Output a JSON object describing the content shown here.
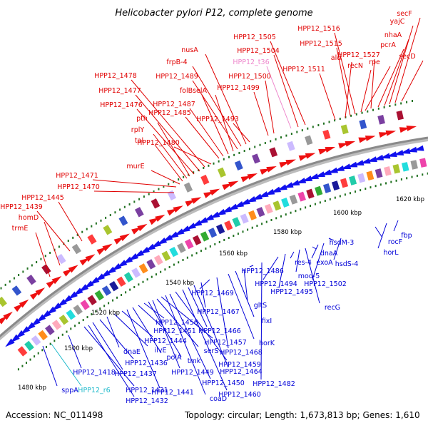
{
  "title": "Helicobacter pylori P12, complete genome",
  "accession": "Accession: NC_011498",
  "summary": "Topology: circular; Length: 1,673,813 bp; Genes: 1,610",
  "colors": {
    "forward_label": "#e00000",
    "reverse_label": "#0000d8",
    "rna_forward_label": "#ee88cc",
    "rna_reverse_label": "#22bbcc",
    "backbone": "#888888",
    "tick": "#207020"
  },
  "kbp_markers": [
    "1480 kbp",
    "1500 kbp",
    "1520 kbp",
    "1540 kbp",
    "1560 kbp",
    "1580 kbp",
    "1600 kbp",
    "1620 kbp"
  ],
  "forward_labels": [
    {
      "text": "trmE",
      "cls": "f"
    },
    {
      "text": "homD",
      "cls": "f"
    },
    {
      "text": "HPP12_1439",
      "cls": "f"
    },
    {
      "text": "HPP12_1445",
      "cls": "f"
    },
    {
      "text": "HPP12_1470",
      "cls": "f"
    },
    {
      "text": "HPP12_1471",
      "cls": "f"
    },
    {
      "text": "murE",
      "cls": "f"
    },
    {
      "text": "tal",
      "cls": "f"
    },
    {
      "text": "rplY",
      "cls": "f"
    },
    {
      "text": "pth",
      "cls": "f"
    },
    {
      "text": "HPP12_1476",
      "cls": "f"
    },
    {
      "text": "HPP12_1477",
      "cls": "f"
    },
    {
      "text": "HPP12_1478",
      "cls": "f"
    },
    {
      "text": "HPP12_1480",
      "cls": "f"
    },
    {
      "text": "HPP12_1485",
      "cls": "f"
    },
    {
      "text": "HPP12_1487",
      "cls": "f"
    },
    {
      "text": "folB",
      "cls": "f"
    },
    {
      "text": "selA",
      "cls": "f"
    },
    {
      "text": "HPP12_1489",
      "cls": "f"
    },
    {
      "text": "frpB-4",
      "cls": "f"
    },
    {
      "text": "nusA",
      "cls": "f"
    },
    {
      "text": "HPP12_1493",
      "cls": "f"
    },
    {
      "text": "HPP12_1499",
      "cls": "f"
    },
    {
      "text": "HPP12_1500",
      "cls": "f"
    },
    {
      "text": "HPP12_t36",
      "cls": "r"
    },
    {
      "text": "HPP12_1504",
      "cls": "f"
    },
    {
      "text": "HPP12_1505",
      "cls": "f"
    },
    {
      "text": "HPP12_1511",
      "cls": "f"
    },
    {
      "text": "ald",
      "cls": "f"
    },
    {
      "text": "HPP12_1515",
      "cls": "f"
    },
    {
      "text": "HPP12_1516",
      "cls": "f"
    },
    {
      "text": "recN",
      "cls": "f"
    },
    {
      "text": "rpe",
      "cls": "f"
    },
    {
      "text": "HPP12_1527",
      "cls": "f"
    },
    {
      "text": "pcrA",
      "cls": "f"
    },
    {
      "text": "nhaA",
      "cls": "f"
    },
    {
      "text": "yajC",
      "cls": "f"
    },
    {
      "text": "secF",
      "cls": "f"
    },
    {
      "text": "secD",
      "cls": "f"
    }
  ],
  "reverse_labels": [
    {
      "text": "sppA",
      "cls": "b"
    },
    {
      "text": "HPP12_r6",
      "cls": "c"
    },
    {
      "text": "HPP12_1418",
      "cls": "b"
    },
    {
      "text": "HPP12_1431",
      "cls": "b"
    },
    {
      "text": "HPP12_1432",
      "cls": "b"
    },
    {
      "text": "HPP12_1437",
      "cls": "b"
    },
    {
      "text": "HPP12_1436",
      "cls": "b"
    },
    {
      "text": "dnaE",
      "cls": "b"
    },
    {
      "text": "ilvE",
      "cls": "b"
    },
    {
      "text": "HPP12_1444",
      "cls": "b"
    },
    {
      "text": "HPP12_1441",
      "cls": "b"
    },
    {
      "text": "polA",
      "cls": "b"
    },
    {
      "text": "HPP12_1451",
      "cls": "b"
    },
    {
      "text": "HPP12_1456",
      "cls": "b"
    },
    {
      "text": "tmk",
      "cls": "b"
    },
    {
      "text": "HPP12_1449",
      "cls": "b"
    },
    {
      "text": "serS",
      "cls": "b"
    },
    {
      "text": "HPP12_1457",
      "cls": "b"
    },
    {
      "text": "coaD",
      "cls": "b"
    },
    {
      "text": "HPP12_1450",
      "cls": "b"
    },
    {
      "text": "HPP12_1459",
      "cls": "b"
    },
    {
      "text": "HPP12_1460",
      "cls": "b"
    },
    {
      "text": "HPP12_1466",
      "cls": "b"
    },
    {
      "text": "HPP12_1464",
      "cls": "b"
    },
    {
      "text": "HPP12_1467",
      "cls": "b"
    },
    {
      "text": "HPP12_1469",
      "cls": "b"
    },
    {
      "text": "HPP12_1468",
      "cls": "b"
    },
    {
      "text": "horK",
      "cls": "b"
    },
    {
      "text": "fixI",
      "cls": "b"
    },
    {
      "text": "gltS",
      "cls": "b"
    },
    {
      "text": "HPP12_1486",
      "cls": "b"
    },
    {
      "text": "HPP12_1482",
      "cls": "b"
    },
    {
      "text": "HPP12_1494",
      "cls": "b"
    },
    {
      "text": "HPP12_1495",
      "cls": "b"
    },
    {
      "text": "res-4",
      "cls": "b"
    },
    {
      "text": "mod-5",
      "cls": "b"
    },
    {
      "text": "recG",
      "cls": "b"
    },
    {
      "text": "dnaA",
      "cls": "b"
    },
    {
      "text": "exoA",
      "cls": "b"
    },
    {
      "text": "HPP12_1502",
      "cls": "b"
    },
    {
      "text": "hsdM-3",
      "cls": "b"
    },
    {
      "text": "hsdS-4",
      "cls": "b"
    },
    {
      "text": "rocF",
      "cls": "b"
    },
    {
      "text": "horL",
      "cls": "b"
    },
    {
      "text": "fbp",
      "cls": "b"
    }
  ]
}
